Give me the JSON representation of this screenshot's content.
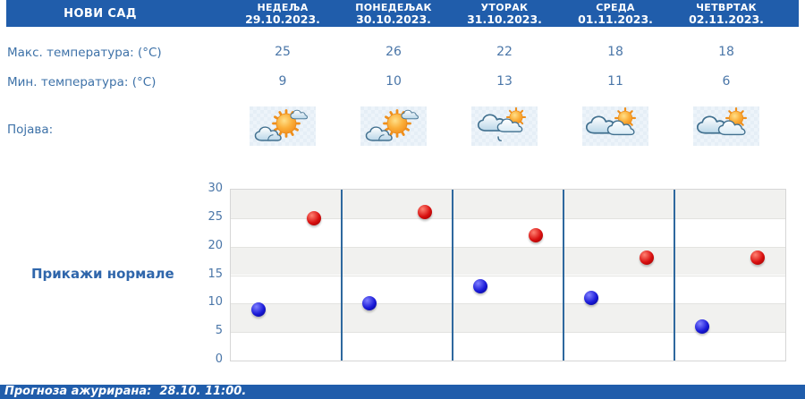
{
  "header": {
    "city": "НОВИ САД"
  },
  "days": [
    {
      "name": "НЕДЕЉА",
      "date": "29.10.2023."
    },
    {
      "name": "ПОНЕДЕЉАК",
      "date": "30.10.2023."
    },
    {
      "name": "УТОРАК",
      "date": "31.10.2023."
    },
    {
      "name": "СРЕДА",
      "date": "01.11.2023."
    },
    {
      "name": "ЧЕТВРТАК",
      "date": "02.11.2023."
    }
  ],
  "rows": {
    "max_label": "Макс. температура: (°C)",
    "min_label": "Мин. температура: (°C)",
    "appearance_label": "Појава:"
  },
  "max_temps": [
    25,
    26,
    22,
    18,
    18
  ],
  "min_temps": [
    9,
    10,
    13,
    11,
    6
  ],
  "weather_icons": [
    "sun-with-clouds",
    "sun-with-clouds",
    "clouds-sun-drizzle",
    "clouds-with-sun",
    "clouds-with-sun"
  ],
  "normals_button_label": "Прикажи нормале",
  "footer": {
    "updated_text": "Прогноза ажурирана:  28.10. 11:00."
  },
  "colors": {
    "header_bg": "#205dab",
    "label_text": "#3e72a8",
    "value_text": "#4a76a8",
    "max_dot": "#cc0000",
    "min_dot": "#0000cc",
    "chart_divider": "#2e689e",
    "chart_band": "#f1f1ef",
    "icon_bg": "#e9f1f8"
  },
  "chart_data": {
    "type": "scatter",
    "categories": [
      "29.10.2023.",
      "30.10.2023.",
      "31.10.2023.",
      "01.11.2023.",
      "02.11.2023."
    ],
    "series": [
      {
        "name": "Макс. температура (°C)",
        "color": "#cc0000",
        "values": [
          25,
          26,
          22,
          18,
          18
        ]
      },
      {
        "name": "Мин. температура (°C)",
        "color": "#0000cc",
        "values": [
          9,
          10,
          13,
          11,
          6
        ]
      }
    ],
    "title": "",
    "xlabel": "",
    "ylabel": "",
    "ylim": [
      0,
      30
    ],
    "yticks": [
      0,
      5,
      10,
      15,
      20,
      25,
      30
    ],
    "grid": true,
    "legend": "none"
  }
}
